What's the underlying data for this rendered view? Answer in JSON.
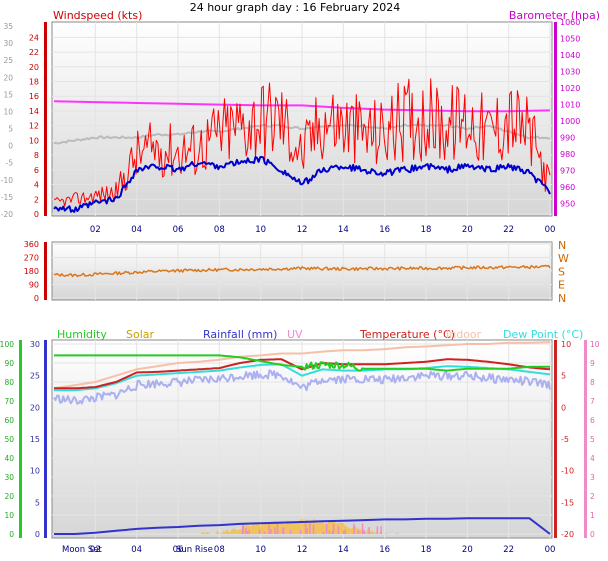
{
  "title": "24 hour graph day : 16 February 2024",
  "colors": {
    "wind": "#ff0000",
    "gust_dark": "#cc0000",
    "avg": "#0000cc",
    "baro": "#ff33ff",
    "grey_line": "#bbbbbb",
    "dir": "#d9761a",
    "humidity": "#22cc22",
    "solar": "#f5c04a",
    "rain": "#3333cc",
    "uv": "#f08acb",
    "temp": "#cc2222",
    "indoor": "#f6c0a8",
    "dew": "#33dddd",
    "apparent": "#aab0f0",
    "axis_left": "#cc0000",
    "axis_right": "#cc00cc"
  },
  "chart_data": [
    {
      "type": "line",
      "name": "wind-panel",
      "ylabel": "Windspeed (kts)",
      "y2label": "Barometer (hpa)",
      "x_ticks": [
        "02",
        "04",
        "06",
        "08",
        "10",
        "12",
        "14",
        "16",
        "18",
        "20",
        "22",
        "00"
      ],
      "ylim_knots": [
        0,
        25
      ],
      "y_ticks_knots": [
        "0",
        "2",
        "4",
        "6",
        "8",
        "10",
        "12",
        "14",
        "16",
        "18",
        "20",
        "22",
        "24"
      ],
      "y_ticks_grey": [
        "-20",
        "-15",
        "-10",
        "-5",
        "0",
        "5",
        "10",
        "15",
        "20",
        "25",
        "30",
        "35"
      ],
      "y2lim": [
        945,
        1060
      ],
      "y2_ticks": [
        "950",
        "960",
        "970",
        "980",
        "990",
        "1000",
        "1010",
        "1020",
        "1030",
        "1040",
        "1050",
        "1060"
      ],
      "barometer": [
        [
          0,
          1012
        ],
        [
          2,
          1011.5
        ],
        [
          4,
          1011
        ],
        [
          6,
          1010.5
        ],
        [
          8,
          1010
        ],
        [
          10,
          1009.5
        ],
        [
          12,
          1009.5
        ],
        [
          14,
          1008
        ],
        [
          16,
          1007
        ],
        [
          18,
          1006.5
        ],
        [
          20,
          1006
        ],
        [
          22,
          1006
        ],
        [
          24,
          1006.5
        ]
      ],
      "wind_avg_hourly": [
        1,
        0.5,
        1.5,
        2,
        6,
        6.5,
        6,
        7,
        6.5,
        7,
        7.5,
        6,
        4,
        6,
        6.5,
        6,
        5.5,
        6,
        6.5,
        6,
        6.5,
        6,
        6.5,
        5.5,
        3
      ],
      "wind_gust_hourly": [
        1.5,
        2,
        2.5,
        3,
        8,
        9,
        8.5,
        9,
        11,
        12,
        13,
        13,
        8,
        13,
        12,
        11,
        11,
        13,
        13,
        12,
        13,
        11,
        13,
        11,
        4
      ],
      "grey_hourly": [
        12,
        12.5,
        13,
        13,
        13,
        13.5,
        13.5,
        14,
        14,
        14.5,
        15,
        15,
        14.5,
        15,
        15,
        15,
        14.5,
        15,
        15,
        15,
        14.5,
        15,
        14,
        13,
        13
      ]
    },
    {
      "type": "line",
      "name": "direction-panel",
      "ylim": [
        0,
        360
      ],
      "y_ticks": [
        "0",
        "90",
        "180",
        "270",
        "360"
      ],
      "y2_ticks": [
        "N",
        "W",
        "S",
        "E",
        "N"
      ],
      "direction_hourly": [
        155,
        152,
        158,
        165,
        172,
        178,
        182,
        185,
        188,
        190,
        192,
        195,
        198,
        196,
        194,
        195,
        196,
        197,
        198,
        200,
        202,
        203,
        205,
        206,
        208
      ]
    },
    {
      "type": "line",
      "name": "weather-panel",
      "legend": [
        "Humidity",
        "Solar",
        "Rainfall (mm)",
        "UV",
        "Temperature (°C)",
        "Indoor",
        "Dew Point (°C)"
      ],
      "humidity_ticks": [
        "0",
        "10",
        "20",
        "30",
        "40",
        "50",
        "60",
        "70",
        "80",
        "90",
        "100"
      ],
      "rain_ticks": [
        "0",
        "5",
        "10",
        "15",
        "20",
        "25",
        "30"
      ],
      "temp_ticks": [
        "-20",
        "-15",
        "-10",
        "-5",
        "0",
        "5",
        "10"
      ],
      "uv_ticks": [
        "0",
        "1",
        "2",
        "3",
        "4",
        "5",
        "6",
        "7",
        "8",
        "9",
        "10"
      ],
      "x_ticks": [
        "02",
        "04",
        "06",
        "08",
        "10",
        "12",
        "14",
        "16",
        "18",
        "20",
        "22",
        "00"
      ],
      "annotations": [
        "Moon Set",
        "Sun Rise"
      ],
      "humidity_hourly": [
        94,
        94,
        94,
        94,
        94,
        94,
        94,
        94,
        94,
        93,
        91,
        89,
        88,
        89,
        89,
        87,
        87,
        87,
        87,
        86,
        87,
        87,
        87,
        88,
        88
      ],
      "temp_hourly": [
        3.0,
        3.0,
        3.2,
        4.0,
        5.5,
        5.6,
        5.8,
        6.0,
        6.2,
        7.0,
        7.5,
        7.6,
        6.0,
        7.0,
        6.8,
        6.8,
        6.8,
        7.0,
        7.2,
        7.6,
        7.5,
        7.2,
        6.8,
        6.3,
        6.0
      ],
      "dew_hourly": [
        2.7,
        2.7,
        3.0,
        3.8,
        5.0,
        5.2,
        5.4,
        5.6,
        5.8,
        6.3,
        6.7,
        6.8,
        5.0,
        6.0,
        5.8,
        5.8,
        6.0,
        6.0,
        6.2,
        6.5,
        6.4,
        6.2,
        6.0,
        5.6,
        5.2
      ],
      "apparent_hourly": [
        1.5,
        1.0,
        1.5,
        2.0,
        3.5,
        3.8,
        4.0,
        4.2,
        4.5,
        5.0,
        5.2,
        5.2,
        3.0,
        4.5,
        4.5,
        4.5,
        4.3,
        4.8,
        5.0,
        5.0,
        5.0,
        4.6,
        4.4,
        4.0,
        3.5
      ],
      "indoor_hourly": [
        3.0,
        3.5,
        4.0,
        5.0,
        6.0,
        6.5,
        7.0,
        7.2,
        7.5,
        8.0,
        8.2,
        8.5,
        8.5,
        8.8,
        9.0,
        9.0,
        9.2,
        9.5,
        9.6,
        9.8,
        10.0,
        10.0,
        10.2,
        10.2,
        10.3
      ],
      "rain_cumulative_hourly": [
        0,
        0,
        0.2,
        0.5,
        0.8,
        1.0,
        1.1,
        1.3,
        1.4,
        1.6,
        1.7,
        1.8,
        1.9,
        2.0,
        2.1,
        2.2,
        2.3,
        2.3,
        2.4,
        2.4,
        2.5,
        2.5,
        2.5,
        2.5,
        0
      ],
      "solar_hourly": [
        0,
        0,
        0,
        0,
        0,
        0,
        0,
        0,
        0.5,
        3,
        5,
        6,
        7,
        6.5,
        5,
        2,
        0.3,
        0,
        0,
        0,
        0,
        0,
        0,
        0,
        0
      ]
    }
  ]
}
